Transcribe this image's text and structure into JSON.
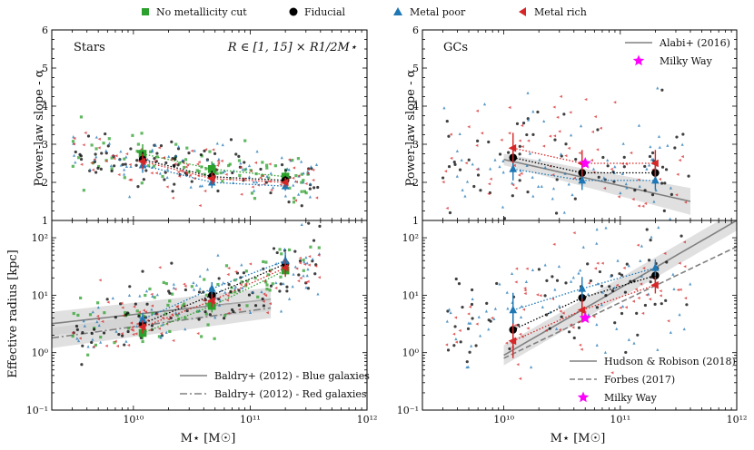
{
  "figure": {
    "top_legend": [
      {
        "label": "No metallicity cut",
        "color": "#2ca02c",
        "marker": "square"
      },
      {
        "label": "Fiducial",
        "color": "#000000",
        "marker": "circle"
      },
      {
        "label": "Metal poor",
        "color": "#1f77b4",
        "marker": "triangle-up"
      },
      {
        "label": "Metal rich",
        "color": "#d62728",
        "marker": "triangle-left"
      }
    ],
    "x_label_left": "M⋆ [M☉]",
    "x_label_right": "M⋆ [M☉]",
    "y_label_top": "Power-law slope - α",
    "y_label_bottom": "Effective radius [kpc]",
    "stars_title": "Stars",
    "stars_range_text": "R ∈ [1, 15] × R1/2M⋆",
    "gcs_title": "GCs"
  },
  "chart_data": [
    {
      "panel": "stars-slope",
      "type": "scatter",
      "title": "Stars",
      "annotation": "R ∈ [1, 15] × R1/2M⋆",
      "xscale": "log",
      "xlim": [
        2000000000.0,
        1000000000000.0
      ],
      "yscale": "linear",
      "ylim": [
        1,
        6
      ],
      "yticks": [
        1,
        2,
        3,
        4,
        5,
        6
      ],
      "ylabel": "Power-law slope - α",
      "series": [
        {
          "name": "No metallicity cut",
          "x": [
            12000000000.0,
            47000000000.0,
            200000000000.0
          ],
          "y": [
            2.75,
            2.35,
            2.15
          ],
          "yerr": [
            0.25,
            0.2,
            0.15
          ]
        },
        {
          "name": "Fiducial",
          "x": [
            12000000000.0,
            47000000000.0,
            200000000000.0
          ],
          "y": [
            2.6,
            2.15,
            2.05
          ],
          "yerr": [
            0.2,
            0.15,
            0.12
          ]
        },
        {
          "name": "Metal poor",
          "x": [
            12000000000.0,
            47000000000.0,
            200000000000.0
          ],
          "y": [
            2.45,
            2.0,
            1.9
          ],
          "yerr": [
            0.2,
            0.15,
            0.12
          ]
        },
        {
          "name": "Metal rich",
          "x": [
            12000000000.0,
            47000000000.0,
            200000000000.0
          ],
          "y": [
            2.55,
            2.1,
            2.0
          ],
          "yerr": [
            0.2,
            0.15,
            0.12
          ]
        }
      ],
      "scatter_cloud": {
        "x_range": [
          3000000000.0,
          400000000000.0
        ],
        "y_mean_at_low": 2.75,
        "y_mean_at_high": 2.05,
        "y_spread": 0.35,
        "count_per_series": 80
      }
    },
    {
      "panel": "gcs-slope",
      "type": "scatter",
      "title": "GCs",
      "xscale": "log",
      "xlim": [
        2000000000.0,
        1000000000000.0
      ],
      "yscale": "linear",
      "ylim": [
        1,
        6
      ],
      "yticks": [
        1,
        2,
        3,
        4,
        5,
        6
      ],
      "legend": [
        {
          "label": "Alabi+ (2016)",
          "style": "line",
          "color": "#808080"
        },
        {
          "label": "Milky Way",
          "style": "star",
          "color": "#ff00ff"
        }
      ],
      "series": [
        {
          "name": "Fiducial",
          "x": [
            12000000000.0,
            47000000000.0,
            200000000000.0
          ],
          "y": [
            2.65,
            2.25,
            2.25
          ],
          "yerr": [
            0.3,
            0.25,
            0.25
          ]
        },
        {
          "name": "Metal poor",
          "x": [
            12000000000.0,
            47000000000.0,
            200000000000.0
          ],
          "y": [
            2.35,
            2.05,
            2.05
          ],
          "yerr": [
            0.3,
            0.25,
            0.25
          ]
        },
        {
          "name": "Metal rich",
          "x": [
            12000000000.0,
            47000000000.0,
            200000000000.0
          ],
          "y": [
            2.9,
            2.5,
            2.5
          ],
          "yerr": [
            0.4,
            0.35,
            0.35
          ]
        }
      ],
      "relations": [
        {
          "name": "Alabi+ (2016)",
          "x": [
            10000000000.0,
            400000000000.0
          ],
          "y": [
            2.6,
            1.5
          ],
          "band": 0.25
        }
      ],
      "milky_way": {
        "x": 50000000000.0,
        "y": 2.5
      },
      "scatter_cloud": {
        "x_range": [
          3000000000.0,
          400000000000.0
        ],
        "y_mean_at_low": 2.6,
        "y_mean_at_high": 2.2,
        "y_spread": 0.8,
        "count_per_series": 70
      }
    },
    {
      "panel": "stars-radius",
      "type": "scatter",
      "xscale": "log",
      "xlim": [
        2000000000.0,
        1000000000000.0
      ],
      "xticks": [
        10000000000.0,
        100000000000.0,
        1000000000000.0
      ],
      "xtick_labels": [
        "10¹⁰",
        "10¹¹",
        "10¹²"
      ],
      "yscale": "log",
      "ylim": [
        0.1,
        200
      ],
      "yticks": [
        0.1,
        1,
        10,
        100
      ],
      "ytick_labels": [
        "10⁻¹",
        "10⁰",
        "10¹",
        "10²"
      ],
      "xlabel": "M⋆ [M☉]",
      "ylabel": "Effective radius [kpc]",
      "legend": [
        {
          "label": "Baldry+ (2012) - Blue galaxies",
          "style": "line",
          "color": "#808080"
        },
        {
          "label": "Baldry+ (2012) - Red galaxies",
          "style": "dashdot",
          "color": "#808080"
        }
      ],
      "series": [
        {
          "name": "No metallicity cut",
          "x": [
            12000000000.0,
            47000000000.0,
            200000000000.0
          ],
          "y": [
            2.2,
            6.5,
            27
          ],
          "yerr_factor": [
            1.3,
            1.3,
            1.3
          ]
        },
        {
          "name": "Fiducial",
          "x": [
            12000000000.0,
            47000000000.0,
            200000000000.0
          ],
          "y": [
            3.2,
            10,
            35
          ],
          "yerr_factor": [
            1.3,
            1.3,
            1.4
          ]
        },
        {
          "name": "Metal poor",
          "x": [
            12000000000.0,
            47000000000.0,
            200000000000.0
          ],
          "y": [
            3.8,
            13,
            40
          ],
          "yerr_factor": [
            1.3,
            1.3,
            1.4
          ]
        },
        {
          "name": "Metal rich",
          "x": [
            12000000000.0,
            47000000000.0,
            200000000000.0
          ],
          "y": [
            2.8,
            8,
            30
          ],
          "yerr_factor": [
            1.3,
            1.3,
            1.4
          ]
        }
      ],
      "relations": [
        {
          "name": "Baldry+ (2012) - Blue galaxies",
          "x": [
            2000000000.0,
            150000000000.0
          ],
          "y": [
            3.2,
            8.5
          ],
          "band_factor": 1.6
        },
        {
          "name": "Baldry+ (2012) - Red galaxies",
          "x": [
            2000000000.0,
            150000000000.0
          ],
          "y": [
            1.8,
            6.0
          ],
          "band_factor": 1.5
        }
      ],
      "scatter_cloud": {
        "x_range": [
          3000000000.0,
          400000000000.0
        ],
        "y_mean_at_low": 2.0,
        "y_mean_at_high": 35,
        "y_spread_dex": 0.3,
        "count_per_series": 80
      }
    },
    {
      "panel": "gcs-radius",
      "type": "scatter",
      "xscale": "log",
      "xlim": [
        2000000000.0,
        1000000000000.0
      ],
      "xticks": [
        10000000000.0,
        100000000000.0,
        1000000000000.0
      ],
      "xtick_labels": [
        "10¹⁰",
        "10¹¹",
        "10¹²"
      ],
      "yscale": "log",
      "ylim": [
        0.1,
        200
      ],
      "yticks": [
        0.1,
        1,
        10,
        100
      ],
      "ytick_labels": [
        "10⁻¹",
        "10⁰",
        "10¹",
        "10²"
      ],
      "xlabel": "M⋆ [M☉]",
      "legend": [
        {
          "label": "Hudson & Robison (2018)",
          "style": "line",
          "color": "#808080"
        },
        {
          "label": "Forbes (2017)",
          "style": "dashed",
          "color": "#808080"
        },
        {
          "label": "Milky Way",
          "style": "star",
          "color": "#ff00ff"
        }
      ],
      "series": [
        {
          "name": "Fiducial",
          "x": [
            12000000000.0,
            47000000000.0,
            200000000000.0
          ],
          "y": [
            2.5,
            9,
            22
          ],
          "yerr_factor": [
            2.0,
            1.6,
            1.4
          ]
        },
        {
          "name": "Metal poor",
          "x": [
            12000000000.0,
            47000000000.0,
            200000000000.0
          ],
          "y": [
            5.5,
            13,
            30
          ],
          "yerr_factor": [
            2.0,
            1.6,
            1.4
          ]
        },
        {
          "name": "Metal rich",
          "x": [
            12000000000.0,
            47000000000.0,
            200000000000.0
          ],
          "y": [
            1.6,
            5.5,
            15
          ],
          "yerr_factor": [
            2.0,
            1.6,
            1.4
          ]
        }
      ],
      "relations": [
        {
          "name": "Hudson & Robison (2018)",
          "x": [
            10000000000.0,
            1000000000000.0
          ],
          "y": [
            0.9,
            200
          ],
          "band_factor": 1.5
        },
        {
          "name": "Forbes (2017)",
          "x": [
            10000000000.0,
            1000000000000.0
          ],
          "y": [
            0.8,
            70
          ]
        }
      ],
      "milky_way": {
        "x": 50000000000.0,
        "y": 4.0
      },
      "scatter_cloud": {
        "x_range": [
          3000000000.0,
          400000000000.0
        ],
        "y_mean_at_low": 2.0,
        "y_mean_at_high": 20,
        "y_spread_dex": 0.5,
        "count_per_series": 70
      }
    }
  ],
  "colors": {
    "No metallicity cut": "#2ca02c",
    "Fiducial": "#000000",
    "Metal poor": "#1f77b4",
    "Metal rich": "#d62728",
    "relation": "#808080",
    "band": "#cccccc",
    "milky_way": "#ff00ff"
  }
}
